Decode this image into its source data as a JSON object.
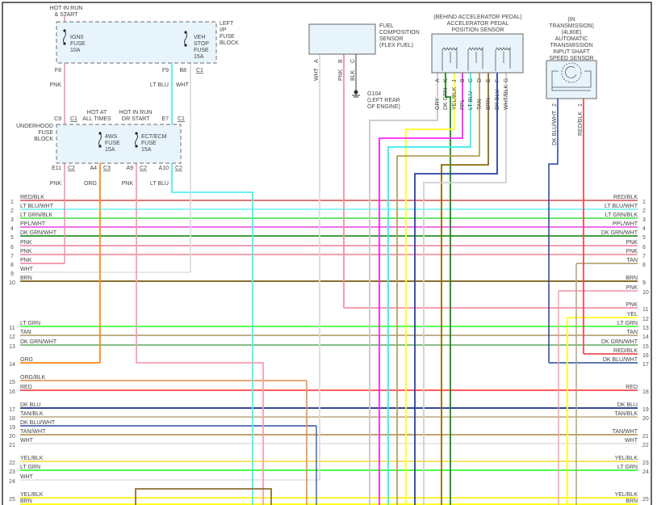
{
  "left_ip_fuse_block": {
    "name": [
      "LEFT",
      "I/P",
      "FUSE",
      "BLOCK"
    ],
    "supply": [
      "HOT IN RUN",
      "& START"
    ],
    "ign0_fuse": [
      "IGN0",
      "FUSE",
      "10A"
    ],
    "veh_stop_fuse": [
      "VEH",
      "STOP",
      "FUSE",
      "15A"
    ],
    "pins": {
      "f8": "F8",
      "f9": "F9",
      "b8": "B8",
      "conn": "C1"
    },
    "wires": {
      "pnk": "PNK",
      "lt_blu": "LT BLU",
      "wht": "WHT"
    }
  },
  "underhood_fuse_block": {
    "name": [
      "UNDERHOOD",
      "FUSE",
      "BLOCK"
    ],
    "supply_4ws": [
      "HOT AT",
      "ALL TIMES"
    ],
    "supply_ect": [
      "HOT IN RUN",
      "OR START"
    ],
    "fuse_4ws": [
      "4WS",
      "FUSE",
      "15A"
    ],
    "fuse_ect": [
      "ECT/ECM",
      "FUSE",
      "15A"
    ],
    "pins": {
      "c9": "C9",
      "c1a": "C1",
      "e7": "E7",
      "c1b": "C1",
      "e11": "E11",
      "c2a": "C2",
      "a4": "A4",
      "c3": "C3",
      "a9": "A9",
      "c2b": "C2",
      "a10": "A10",
      "c2c": "C2"
    },
    "wires": {
      "pnk1": "PNK",
      "org": "ORG",
      "pnk2": "PNK",
      "lt_blu": "LT BLU"
    }
  },
  "fuel_sensor": {
    "name": [
      "FUEL",
      "COMPOSITION",
      "SENSOR",
      "(FLEX FUEL)"
    ],
    "pins": [
      {
        "pin": "A",
        "wire": "WHT"
      },
      {
        "pin": "B",
        "wire": "PNK"
      },
      {
        "pin": "C",
        "wire": "BLK"
      }
    ],
    "ground": [
      "G104",
      "(LEFT REAR",
      "OF ENGINE)"
    ]
  },
  "accel_sensor": {
    "name": [
      "(BEHIND ACCELERATOR PEDAL)",
      "ACCELERATOR PEDAL",
      "POSITION SENSOR"
    ],
    "pins": [
      {
        "pin": "A",
        "wire": "GRY"
      },
      {
        "pin": "K",
        "wire": "DK GRN"
      },
      {
        "pin": "J",
        "wire": "YEL/BLK"
      },
      {
        "pin": "B",
        "wire": "PPL"
      },
      {
        "pin": "C",
        "wire": "LT BLU"
      },
      {
        "pin": "D",
        "wire": "TAN"
      },
      {
        "pin": "E",
        "wire": "BRN"
      },
      {
        "pin": "F",
        "wire": "DK BLU"
      },
      {
        "pin": "G",
        "wire": "WHT/BLK"
      }
    ]
  },
  "trans_sensor": {
    "name": [
      "(IN",
      "TRANSMISSION)",
      "(4L80E)",
      "AUTOMATIC",
      "TRANSMISSION",
      "INPUT SHAFT",
      "SPEED SENSOR"
    ],
    "pins": [
      {
        "pin": "2",
        "wire": "DK BLU/WHT"
      },
      {
        "pin": "1",
        "wire": "RED/BLK"
      }
    ]
  },
  "bus_left": [
    {
      "num": "1",
      "label": "RED/BLK",
      "color": "#d86464"
    },
    {
      "num": "2",
      "label": "LT BLU/WHT",
      "color": "#80f4f8"
    },
    {
      "num": "3",
      "label": "LT GRN/BLK",
      "color": "#58e058"
    },
    {
      "num": "4",
      "label": "PPL/WHT",
      "color": "#e860e8"
    },
    {
      "num": "5",
      "label": "DK GRN/WHT",
      "color": "#279027"
    },
    {
      "num": "6",
      "label": "PNK",
      "color": "#f390a4"
    },
    {
      "num": "7",
      "label": "PNK",
      "color": "#f390a4"
    },
    {
      "num": "8",
      "label": "PNK",
      "color": "#f390a4"
    },
    {
      "num": "9",
      "label": "WHT",
      "color": "#e4e4e4"
    },
    {
      "num": "10",
      "label": "BRN",
      "color": "#7a5a10"
    },
    {
      "num": "11",
      "label": "LT GRN",
      "color": "#44ff44"
    },
    {
      "num": "12",
      "label": "TAN",
      "color": "#b4a678"
    },
    {
      "num": "13",
      "label": "DK GRN/WHT",
      "color": "#74b474"
    },
    {
      "num": "14",
      "label": "ORG",
      "color": "#ff8a10"
    },
    {
      "num": "15",
      "label": "ORG/BLK",
      "color": "#e89a64"
    },
    {
      "num": "16",
      "label": "RED",
      "color": "#ff4444"
    },
    {
      "num": "17",
      "label": "DK BLU",
      "color": "#1e2e80"
    },
    {
      "num": "18",
      "label": "TAN/BLK",
      "color": "#c4b490"
    },
    {
      "num": "19",
      "label": "DK BLU/WHT",
      "color": "#4a64a8"
    },
    {
      "num": "20",
      "label": "TAN/WHT",
      "color": "#b49a58"
    },
    {
      "num": "21",
      "label": "WHT",
      "color": "#e4e4e4"
    },
    {
      "num": "22",
      "label": "YEL/BLK",
      "color": "#eee050"
    },
    {
      "num": "23",
      "label": "LT GRN",
      "color": "#30ff30"
    },
    {
      "num": "24",
      "label": "WHT",
      "color": "#e4e4e4"
    },
    {
      "num": "25",
      "label": "YEL/BLK",
      "color": "#f4f020"
    },
    {
      "num": "",
      "label": "BRN",
      "color": "#ffff00"
    }
  ],
  "bus_right": [
    {
      "num": "1",
      "label": "RED/BLK",
      "color": "#d86464"
    },
    {
      "num": "2",
      "label": "LT BLU/WHT",
      "color": "#80f4f8"
    },
    {
      "num": "3",
      "label": "LT GRN/BLK",
      "color": "#58e058"
    },
    {
      "num": "4",
      "label": "PPL/WHT",
      "color": "#e860e8"
    },
    {
      "num": "5",
      "label": "DK GRN/WHT",
      "color": "#279027"
    },
    {
      "num": "6",
      "label": "PNK",
      "color": "#f390a4"
    },
    {
      "num": "7",
      "label": "PNK",
      "color": "#f390a4"
    },
    {
      "num": "8",
      "label": "TAN",
      "color": "#b4a678"
    },
    {
      "num": "9",
      "label": "BRN",
      "color": "#7a5a10"
    },
    {
      "num": "10",
      "label": "PNK",
      "color": "#f5a0b0"
    },
    {
      "num": "11",
      "label": "PNK",
      "color": "#f390a4"
    },
    {
      "num": "12",
      "label": "YEL",
      "color": "#ffff20"
    },
    {
      "num": "13",
      "label": "LT GRN",
      "color": "#44ff44"
    },
    {
      "num": "14",
      "label": "TAN",
      "color": "#b4a678"
    },
    {
      "num": "15",
      "label": "DK GRN/WHT",
      "color": "#74b474"
    },
    {
      "num": "16",
      "label": "RED/BLK",
      "color": "#e85050"
    },
    {
      "num": "17",
      "label": "DK BLU/WHT",
      "color": "#4a64a8"
    },
    {
      "num": "18",
      "label": "RED",
      "color": "#ff4444"
    },
    {
      "num": "19",
      "label": "DK BLU",
      "color": "#1e2e80"
    },
    {
      "num": "20",
      "label": "TAN/BLK",
      "color": "#c4b490"
    },
    {
      "num": "21",
      "label": "TAN/WHT",
      "color": "#b49a58"
    },
    {
      "num": "22",
      "label": "WHT",
      "color": "#e4e4e4"
    },
    {
      "num": "23",
      "label": "YEL/BLK",
      "color": "#eee050"
    },
    {
      "num": "24",
      "label": "LT GRN",
      "color": "#30ff30"
    },
    {
      "num": "25",
      "label": "YEL/BLK",
      "color": "#f4f020"
    },
    {
      "num": "",
      "label": "BRN",
      "color": "#ffff00"
    }
  ]
}
